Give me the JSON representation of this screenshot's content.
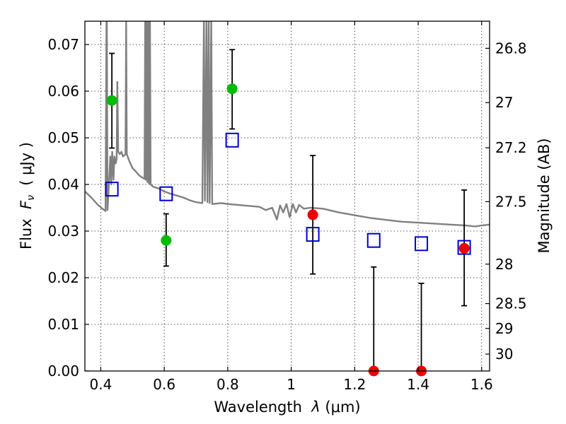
{
  "chart_data": {
    "type": "scatter",
    "xlabel_prefix": "Wavelength  ",
    "xlabel_symbol": "λ",
    "xlabel_unit": " (μm)",
    "ylabel_prefix": "Flux  ",
    "ylabel_symbol": "F",
    "ylabel_sub": "ν",
    "ylabel_unit": "  ( μJy )",
    "y2label": "Magnitude (AB)",
    "xlim": [
      0.35,
      1.625
    ],
    "ylim": [
      0.0,
      0.075
    ],
    "grid": true,
    "x_ticks": [
      {
        "value": 0.4,
        "label": "0.4"
      },
      {
        "value": 0.6,
        "label": "0.6"
      },
      {
        "value": 0.8,
        "label": "0.8"
      },
      {
        "value": 1.0,
        "label": "1"
      },
      {
        "value": 1.2,
        "label": "1.2"
      },
      {
        "value": 1.4,
        "label": "1.4"
      },
      {
        "value": 1.6,
        "label": "1.6"
      }
    ],
    "y_ticks": [
      {
        "value": 0.0,
        "label": "0.00"
      },
      {
        "value": 0.01,
        "label": "0.01"
      },
      {
        "value": 0.02,
        "label": "0.02"
      },
      {
        "value": 0.03,
        "label": "0.03"
      },
      {
        "value": 0.04,
        "label": "0.04"
      },
      {
        "value": 0.05,
        "label": "0.05"
      },
      {
        "value": 0.06,
        "label": "0.06"
      },
      {
        "value": 0.07,
        "label": "0.07"
      }
    ],
    "y2_ticks": [
      {
        "mag": 26.8,
        "label": "26.8"
      },
      {
        "mag": 27.0,
        "label": "27"
      },
      {
        "mag": 27.2,
        "label": "27.2"
      },
      {
        "mag": 27.5,
        "label": "27.5"
      },
      {
        "mag": 28.0,
        "label": "28"
      },
      {
        "mag": 28.5,
        "label": "28.5"
      },
      {
        "mag": 29.0,
        "label": "29"
      },
      {
        "mag": 30.0,
        "label": "30"
      }
    ],
    "sed_model": {
      "color": "#808080",
      "points": [
        [
          0.35,
          0.0385
        ],
        [
          0.37,
          0.0372
        ],
        [
          0.39,
          0.0357
        ],
        [
          0.405,
          0.0348
        ],
        [
          0.415,
          0.0343
        ],
        [
          0.418,
          0.075
        ],
        [
          0.419,
          0.075
        ],
        [
          0.421,
          0.0345
        ],
        [
          0.425,
          0.039
        ],
        [
          0.43,
          0.046
        ],
        [
          0.433,
          0.04
        ],
        [
          0.436,
          0.047
        ],
        [
          0.44,
          0.041
        ],
        [
          0.443,
          0.046
        ],
        [
          0.447,
          0.0445
        ],
        [
          0.45,
          0.0455
        ],
        [
          0.452,
          0.062
        ],
        [
          0.455,
          0.047
        ],
        [
          0.46,
          0.0465
        ],
        [
          0.465,
          0.047
        ],
        [
          0.47,
          0.046
        ],
        [
          0.478,
          0.0465
        ],
        [
          0.48,
          0.075
        ],
        [
          0.482,
          0.0465
        ],
        [
          0.49,
          0.045
        ],
        [
          0.5,
          0.0435
        ],
        [
          0.51,
          0.0428
        ],
        [
          0.52,
          0.042
        ],
        [
          0.53,
          0.0415
        ],
        [
          0.538,
          0.0412
        ],
        [
          0.54,
          0.075
        ],
        [
          0.542,
          0.041
        ],
        [
          0.545,
          0.075
        ],
        [
          0.547,
          0.0405
        ],
        [
          0.55,
          0.075
        ],
        [
          0.552,
          0.0402
        ],
        [
          0.555,
          0.075
        ],
        [
          0.557,
          0.04
        ],
        [
          0.565,
          0.0395
        ],
        [
          0.58,
          0.0392
        ],
        [
          0.6,
          0.0385
        ],
        [
          0.62,
          0.038
        ],
        [
          0.64,
          0.0376
        ],
        [
          0.66,
          0.0372
        ],
        [
          0.68,
          0.0366
        ],
        [
          0.7,
          0.0362
        ],
        [
          0.72,
          0.036
        ],
        [
          0.725,
          0.075
        ],
        [
          0.728,
          0.0365
        ],
        [
          0.733,
          0.075
        ],
        [
          0.736,
          0.0362
        ],
        [
          0.74,
          0.075
        ],
        [
          0.743,
          0.036
        ],
        [
          0.748,
          0.075
        ],
        [
          0.751,
          0.0358
        ],
        [
          0.78,
          0.036
        ],
        [
          0.8,
          0.0358
        ],
        [
          0.85,
          0.0355
        ],
        [
          0.9,
          0.0352
        ],
        [
          0.92,
          0.0345
        ],
        [
          0.94,
          0.035
        ],
        [
          0.955,
          0.0325
        ],
        [
          0.965,
          0.0355
        ],
        [
          0.975,
          0.034
        ],
        [
          0.985,
          0.0358
        ],
        [
          0.995,
          0.033
        ],
        [
          1.005,
          0.0358
        ],
        [
          1.015,
          0.034
        ],
        [
          1.025,
          0.0356
        ],
        [
          1.04,
          0.0348
        ],
        [
          1.06,
          0.035
        ],
        [
          1.1,
          0.0348
        ],
        [
          1.15,
          0.034
        ],
        [
          1.2,
          0.0334
        ],
        [
          1.25,
          0.0328
        ],
        [
          1.3,
          0.0324
        ],
        [
          1.35,
          0.032
        ],
        [
          1.4,
          0.0318
        ],
        [
          1.45,
          0.0316
        ],
        [
          1.5,
          0.0314
        ],
        [
          1.55,
          0.0312
        ],
        [
          1.58,
          0.031
        ],
        [
          1.6,
          0.0312
        ],
        [
          1.625,
          0.0314
        ]
      ]
    },
    "series": [
      {
        "color": "#00bb00",
        "points": [
          {
            "x": 0.435,
            "y": 0.058,
            "yerr_low": 0.0478,
            "yerr_high": 0.0681
          },
          {
            "x": 0.606,
            "y": 0.028,
            "yerr_low": 0.0225,
            "yerr_high": 0.0337
          },
          {
            "x": 0.814,
            "y": 0.0605,
            "yerr_low": 0.0519,
            "yerr_high": 0.0689
          }
        ]
      },
      {
        "color": "#ee0000",
        "points": [
          {
            "x": 1.068,
            "y": 0.0335,
            "yerr_low": 0.0208,
            "yerr_high": 0.0462
          },
          {
            "x": 1.26,
            "y": 0.0,
            "yerr_low": 0.0,
            "yerr_high": 0.0223
          },
          {
            "x": 1.41,
            "y": 0.0,
            "yerr_low": 0.0,
            "yerr_high": 0.0188
          },
          {
            "x": 1.545,
            "y": 0.0263,
            "yerr_low": 0.014,
            "yerr_high": 0.0388
          }
        ]
      }
    ],
    "model_fluxes": {
      "color": "#0000cc",
      "points": [
        {
          "x": 0.435,
          "y": 0.039
        },
        {
          "x": 0.606,
          "y": 0.038
        },
        {
          "x": 0.814,
          "y": 0.0495
        },
        {
          "x": 1.068,
          "y": 0.0293
        },
        {
          "x": 1.26,
          "y": 0.028
        },
        {
          "x": 1.41,
          "y": 0.0273
        },
        {
          "x": 1.545,
          "y": 0.0265
        }
      ]
    }
  }
}
